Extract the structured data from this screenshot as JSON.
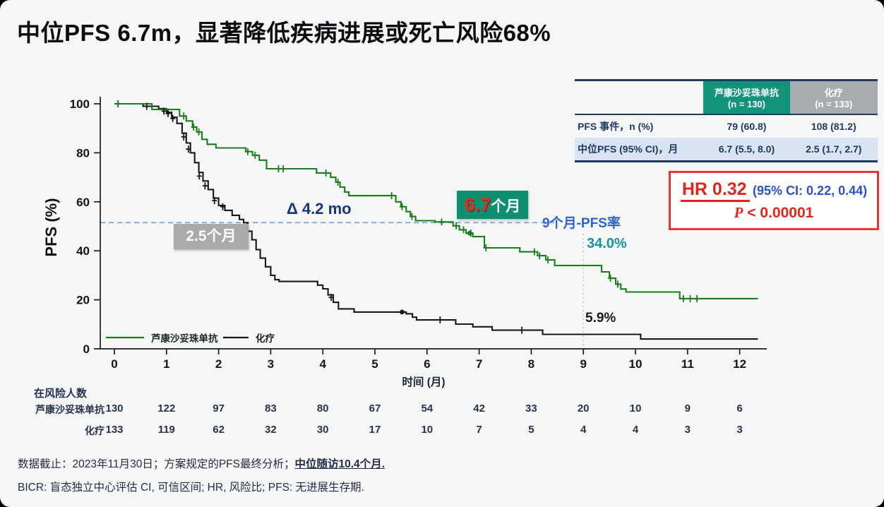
{
  "slide": {
    "title": "中位PFS 6.7m，显著降低疾病进展或死亡风险68%"
  },
  "summary_table": {
    "col_headers": [
      {
        "line1": "芦康沙妥珠单抗",
        "line2": "(n = 130)",
        "color": "#12937a"
      },
      {
        "line1": "化疗",
        "line2": "(n = 133)",
        "color": "#a9acae"
      }
    ],
    "rows": [
      {
        "label": "PFS 事件，n (%)",
        "values": [
          "79 (60.8)",
          "108 (81.2)"
        ]
      },
      {
        "label": "中位PFS (95% CI)，月",
        "values": [
          "6.7 (5.5, 8.0)",
          "2.5 (1.7, 2.7)"
        ]
      }
    ]
  },
  "hr_box": {
    "hr": "HR 0.32",
    "ci": "(95% CI: 0.22, 0.44)",
    "p_label": "P",
    "p_value": " < 0.00001",
    "accent_red": "#e0251c",
    "accent_blue": "#2b50c8"
  },
  "annotations": {
    "chemo_median": "2.5个月",
    "delta": "Δ 4.2 mo",
    "exp_median_value": "6.7",
    "exp_median_unit": "个月",
    "pfs9_title": "9个月-PFS率",
    "pfs9_exp": "34.0%",
    "pfs9_chemo": "5.9%"
  },
  "chart_data": {
    "type": "line",
    "subtype": "kaplan-meier-step",
    "xlabel": "时间 (月)",
    "ylabel": "PFS (%)",
    "xlim": [
      0,
      12.4
    ],
    "ylim": [
      0,
      100
    ],
    "xticks": [
      0,
      1,
      2,
      3,
      4,
      5,
      6,
      7,
      8,
      9,
      10,
      11,
      12
    ],
    "yticks": [
      0,
      20,
      40,
      60,
      80,
      100
    ],
    "grid": false,
    "legend_position": "inside-bottom-left",
    "median_reference_line": {
      "y_percent": 51.5,
      "style": "dashed",
      "color": "#6f9dcf",
      "x_end_month": 8.5
    },
    "month9_reference_line": {
      "x_month": 9,
      "style": "dotted",
      "color": "#b6bdc6"
    },
    "series": [
      {
        "name": "芦康沙妥珠单抗",
        "color": "#1d7c1d",
        "median_months": 6.7,
        "pfs_9mo_percent": 34.0,
        "points": [
          [
            0,
            100
          ],
          [
            0.72,
            97.7
          ],
          [
            1.25,
            95
          ],
          [
            1.38,
            93
          ],
          [
            1.5,
            90.5
          ],
          [
            1.58,
            88.5
          ],
          [
            1.68,
            85.5
          ],
          [
            1.78,
            83.5
          ],
          [
            1.95,
            82
          ],
          [
            2.52,
            80.5
          ],
          [
            2.65,
            79
          ],
          [
            2.78,
            77
          ],
          [
            2.92,
            73.5
          ],
          [
            3.88,
            71.8
          ],
          [
            4.15,
            70
          ],
          [
            4.25,
            68
          ],
          [
            4.33,
            66
          ],
          [
            4.42,
            64
          ],
          [
            4.5,
            62.5
          ],
          [
            5.4,
            60
          ],
          [
            5.5,
            58
          ],
          [
            5.6,
            56
          ],
          [
            5.68,
            54
          ],
          [
            5.78,
            52.3
          ],
          [
            6.15,
            51.8
          ],
          [
            6.5,
            50.2
          ],
          [
            6.62,
            48.6
          ],
          [
            6.75,
            47.2
          ],
          [
            6.88,
            45.8
          ],
          [
            7.1,
            41.2
          ],
          [
            7.78,
            39.6
          ],
          [
            8.12,
            38
          ],
          [
            8.28,
            36.3
          ],
          [
            8.45,
            34
          ],
          [
            9.35,
            31.4
          ],
          [
            9.5,
            28.8
          ],
          [
            9.62,
            26.4
          ],
          [
            9.72,
            24.4
          ],
          [
            9.82,
            23.2
          ],
          [
            10.85,
            20.5
          ],
          [
            12.35,
            20.5
          ]
        ],
        "censors": [
          [
            0.07,
            100
          ],
          [
            1.33,
            95
          ],
          [
            1.52,
            90.5
          ],
          [
            1.62,
            88.5
          ],
          [
            2.56,
            80.5
          ],
          [
            2.7,
            79
          ],
          [
            3.15,
            73.5
          ],
          [
            3.24,
            73.5
          ],
          [
            4.06,
            71.8
          ],
          [
            4.29,
            68
          ],
          [
            5.32,
            62.5
          ],
          [
            5.52,
            58
          ],
          [
            5.71,
            54
          ],
          [
            6.28,
            51.8
          ],
          [
            6.56,
            50.2
          ],
          [
            6.7,
            48.6
          ],
          [
            6.84,
            47.2
          ],
          [
            7.13,
            41.2
          ],
          [
            8.06,
            39.6
          ],
          [
            8.16,
            38
          ],
          [
            8.32,
            36.3
          ],
          [
            9.52,
            28.8
          ],
          [
            9.66,
            26.4
          ],
          [
            10.92,
            20.5
          ],
          [
            11.05,
            20.5
          ],
          [
            11.18,
            20.5
          ]
        ],
        "dots": [
          [
            6.82,
            47.2
          ]
        ]
      },
      {
        "name": "化疗",
        "color": "#16181c",
        "median_months": 2.5,
        "pfs_9mo_percent": 5.9,
        "points": [
          [
            0,
            100
          ],
          [
            0.55,
            99
          ],
          [
            0.85,
            98
          ],
          [
            1.0,
            96.5
          ],
          [
            1.1,
            94.5
          ],
          [
            1.2,
            92
          ],
          [
            1.3,
            88
          ],
          [
            1.38,
            84
          ],
          [
            1.46,
            80
          ],
          [
            1.54,
            76
          ],
          [
            1.62,
            72
          ],
          [
            1.7,
            68.5
          ],
          [
            1.8,
            65
          ],
          [
            1.9,
            61.5
          ],
          [
            2.0,
            58.5
          ],
          [
            2.12,
            56.5
          ],
          [
            2.26,
            54.5
          ],
          [
            2.4,
            52.8
          ],
          [
            2.48,
            51.5
          ],
          [
            2.56,
            48
          ],
          [
            2.64,
            44.5
          ],
          [
            2.72,
            40.5
          ],
          [
            2.8,
            37
          ],
          [
            2.9,
            33.5
          ],
          [
            3.0,
            30
          ],
          [
            3.08,
            28.2
          ],
          [
            3.16,
            27.5
          ],
          [
            3.9,
            26
          ],
          [
            4.0,
            24.5
          ],
          [
            4.1,
            22
          ],
          [
            4.2,
            19
          ],
          [
            4.3,
            16.3
          ],
          [
            4.6,
            15
          ],
          [
            5.6,
            14.3
          ],
          [
            5.72,
            12.9
          ],
          [
            5.8,
            11.8
          ],
          [
            6.55,
            10.1
          ],
          [
            6.88,
            9.0
          ],
          [
            7.25,
            7.6
          ],
          [
            8.22,
            5.9
          ],
          [
            10.1,
            4.0
          ],
          [
            12.35,
            4.0
          ]
        ],
        "censors": [
          [
            0.07,
            100
          ],
          [
            0.62,
            99
          ],
          [
            0.95,
            97
          ],
          [
            1.03,
            96
          ],
          [
            1.12,
            94
          ],
          [
            1.33,
            86.5
          ],
          [
            1.42,
            81.5
          ],
          [
            1.63,
            70.5
          ],
          [
            1.74,
            66.5
          ],
          [
            1.92,
            60.5
          ],
          [
            2.08,
            58
          ],
          [
            4.16,
            21
          ],
          [
            6.25,
            11.8
          ],
          [
            7.82,
            7.6
          ]
        ],
        "dots": [
          [
            5.52,
            15
          ]
        ]
      }
    ]
  },
  "risk_table": {
    "title": "在风险人数",
    "months": [
      0,
      1,
      2,
      3,
      4,
      5,
      6,
      7,
      8,
      9,
      10,
      11,
      12
    ],
    "rows": [
      {
        "label": "芦康沙妥珠单抗",
        "values": [
          130,
          122,
          97,
          83,
          80,
          67,
          54,
          42,
          33,
          20,
          10,
          9,
          6
        ]
      },
      {
        "label": "化疗",
        "values": [
          133,
          119,
          62,
          32,
          30,
          17,
          10,
          7,
          5,
          4,
          4,
          3,
          3
        ]
      }
    ]
  },
  "footnotes": {
    "line1_normal": "数据截止：2023年11月30日；方案规定的PFS最终分析；",
    "line1_bold": "中位随访10.4个月.",
    "line2": "BICR: 盲态独立中心评估 CI, 可信区间; HR, 风险比; PFS: 无进展生存期."
  }
}
